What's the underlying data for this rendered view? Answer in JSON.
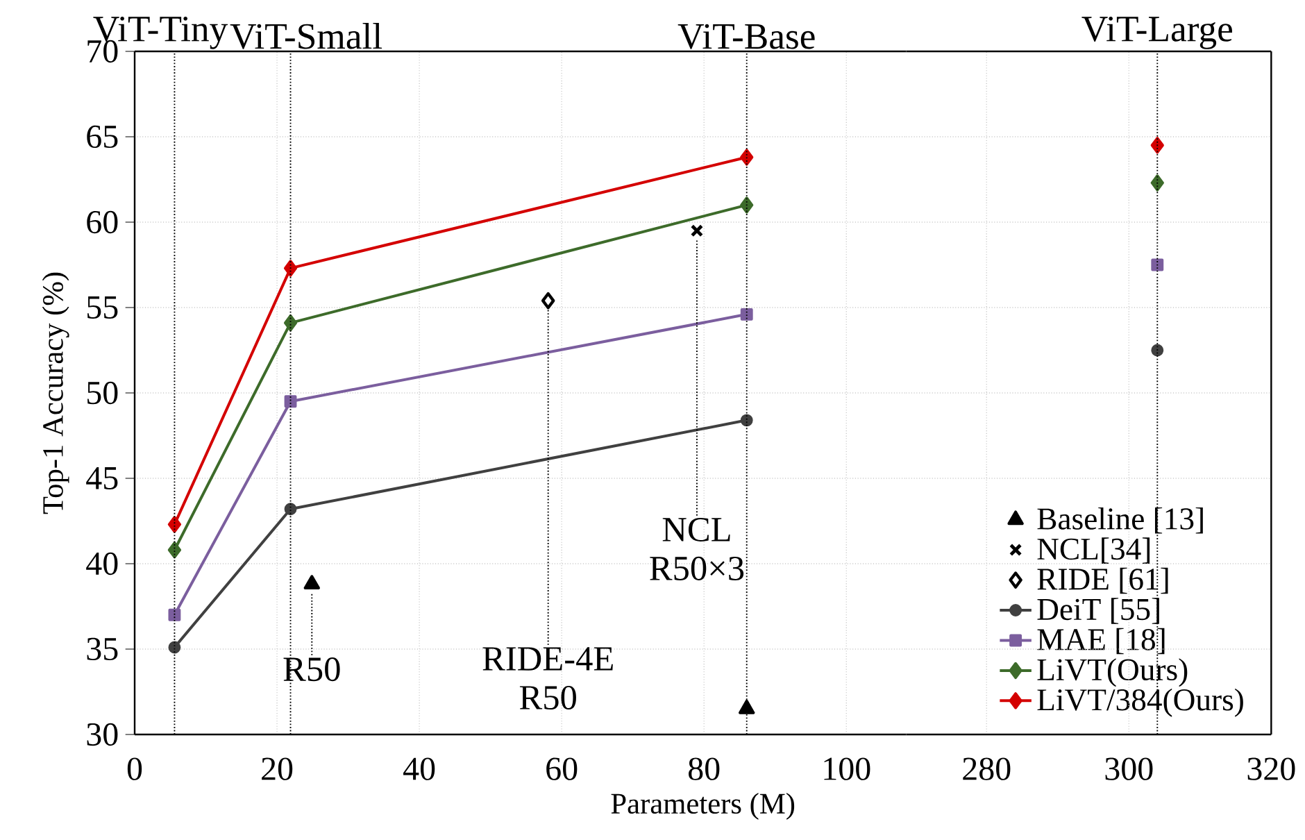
{
  "chart_data": [
    {
      "type": "line",
      "xlabel": "Parameters (M)",
      "ylabel": "Top-1 Accuracy (%)",
      "xlim": [
        0,
        108.4
      ],
      "ylim": [
        30,
        70
      ],
      "xticks": [
        0,
        20,
        40,
        60,
        80,
        100
      ],
      "yticks": [
        30,
        35,
        40,
        45,
        50,
        55,
        60,
        65,
        70
      ],
      "grid": true,
      "legend": "bottom right",
      "series": [
        {
          "name": "Baseline [13]",
          "type": "scatter",
          "marker": "triangle",
          "color": "#000000",
          "x": [
            24.9,
            86
          ],
          "values": [
            38.8,
            31.5
          ]
        },
        {
          "name": "NCL[34]",
          "type": "scatter",
          "marker": "cross",
          "color": "#000000",
          "x": [
            79
          ],
          "values": [
            59.5
          ]
        },
        {
          "name": "RIDE [61]",
          "type": "scatter",
          "marker": "diamond",
          "color": "#000000",
          "x": [
            58.1
          ],
          "values": [
            55.4
          ]
        },
        {
          "name": "DeiT [55]",
          "marker": "circle",
          "color": "#404040",
          "x": [
            5.6,
            21.9,
            86
          ],
          "values": [
            35.1,
            43.2,
            48.4
          ]
        },
        {
          "name": "MAE [18]",
          "marker": "square",
          "color": "#7b5e9e",
          "x": [
            5.6,
            21.9,
            86
          ],
          "values": [
            37.0,
            49.5,
            54.6
          ]
        },
        {
          "name": "LiVT(Ours)",
          "marker": "diamond",
          "color": "#3d6b2a",
          "x": [
            5.6,
            21.9,
            86
          ],
          "values": [
            40.8,
            54.1,
            61.0
          ]
        },
        {
          "name": "LiVT/384(Ours)",
          "marker": "diamond",
          "color": "#d40000",
          "x": [
            5.6,
            21.9,
            86
          ],
          "values": [
            42.3,
            57.3,
            63.8
          ]
        }
      ],
      "ref_lines": [
        {
          "axis": "x",
          "value": 5.6,
          "label": "ViT-Tiny",
          "line_style": "dotted",
          "color": "#000000"
        },
        {
          "axis": "x",
          "value": 21.9,
          "label": "ViT-Small",
          "line_style": "dotted",
          "color": "#000000"
        },
        {
          "axis": "x",
          "value": 86,
          "label": "ViT-Base",
          "line_style": "dotted",
          "color": "#000000"
        }
      ],
      "annotations": [
        {
          "text": "R50",
          "x": 24.9,
          "y": 38.8
        },
        {
          "text": "RIDE-4E R50",
          "x": 58.1,
          "y": 55.4
        },
        {
          "text": "NCL R50×3",
          "x": 79,
          "y": 59.5
        }
      ]
    },
    {
      "type": "line",
      "xlim": [
        268.7,
        320
      ],
      "ylim": [
        30,
        70
      ],
      "xticks": [
        280,
        300,
        320
      ],
      "yticks": [
        30,
        35,
        40,
        45,
        50,
        55,
        60,
        65,
        70
      ],
      "grid": true,
      "tick_labels": "x",
      "series": [
        {
          "marker": "circle",
          "color": "#404040",
          "x": [
            304
          ],
          "values": [
            52.5
          ]
        },
        {
          "marker": "square",
          "color": "#7b5e9e",
          "x": [
            304
          ],
          "values": [
            57.5
          ]
        },
        {
          "marker": "diamond",
          "color": "#3d6b2a",
          "x": [
            304
          ],
          "values": [
            62.3
          ]
        },
        {
          "marker": "diamond",
          "color": "#d40000",
          "x": [
            304
          ],
          "values": [
            64.5
          ]
        }
      ],
      "ref_lines": [
        {
          "axis": "x",
          "value": 304,
          "label": "ViT-Large",
          "line_style": "dotted",
          "color": "#000000"
        }
      ]
    }
  ]
}
